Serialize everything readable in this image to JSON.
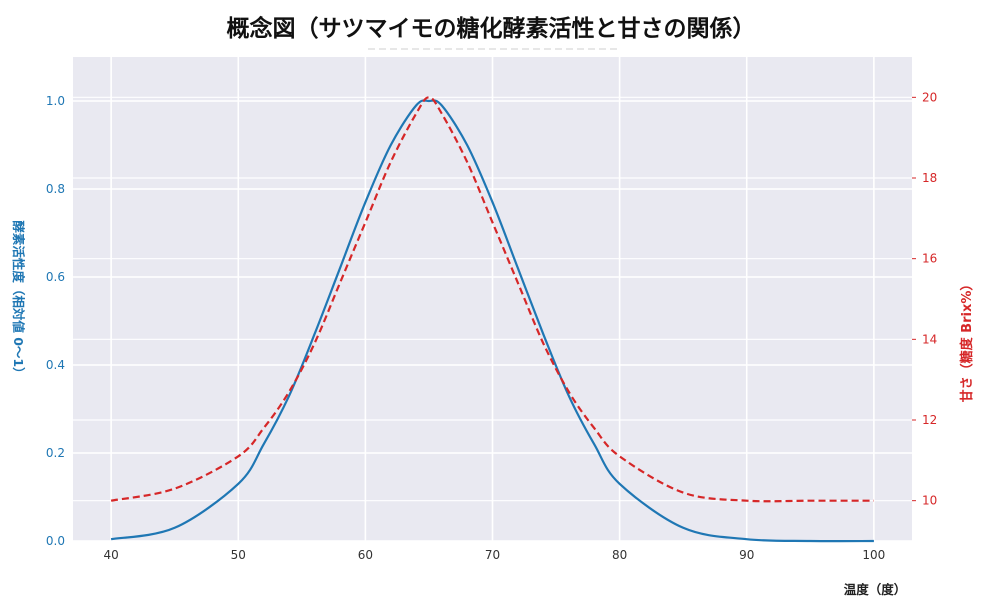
{
  "chart_data": {
    "type": "line",
    "title": "概念図（サツマイモの糖化酵素活性と甘さの関係）",
    "xlabel": "温度（度）",
    "ylabel_left": "酵素活性度（相対値 0～1）",
    "ylabel_right": "甘さ（糖度 Brix%）",
    "xlim": [
      37,
      103
    ],
    "ylim_left": [
      0,
      1.1
    ],
    "ylim_right": [
      9,
      21
    ],
    "x_ticks": [
      "40",
      "50",
      "60",
      "70",
      "80",
      "90",
      "100"
    ],
    "y_left_ticks": [
      "0.0",
      "0.2",
      "0.4",
      "0.6",
      "0.8",
      "1.0"
    ],
    "y_right_ticks": [
      "10",
      "12",
      "14",
      "16",
      "18",
      "20"
    ],
    "grid": true,
    "background": "#e9e9f1",
    "series": [
      {
        "axis": "left",
        "color": "#1f77b4",
        "style": "solid",
        "x": [
          40,
          45,
          50,
          52,
          54,
          56,
          58,
          60,
          62,
          64,
          65,
          66,
          68,
          70,
          72,
          74,
          76,
          78,
          80,
          85,
          90,
          95,
          100
        ],
        "y": [
          0.004,
          0.03,
          0.13,
          0.22,
          0.33,
          0.47,
          0.62,
          0.77,
          0.9,
          0.99,
          1.0,
          0.99,
          0.9,
          0.77,
          0.62,
          0.47,
          0.33,
          0.22,
          0.13,
          0.03,
          0.004,
          0.0,
          0.0
        ]
      },
      {
        "axis": "right",
        "color": "#d62728",
        "style": "dashed",
        "x": [
          40,
          45,
          50,
          52,
          54,
          56,
          58,
          60,
          62,
          64,
          65,
          66,
          68,
          70,
          72,
          74,
          76,
          78,
          80,
          85,
          90,
          95,
          100
        ],
        "y": [
          10.0,
          10.3,
          11.1,
          11.8,
          12.7,
          13.9,
          15.4,
          16.9,
          18.4,
          19.6,
          20.0,
          19.6,
          18.4,
          16.9,
          15.4,
          13.9,
          12.7,
          11.8,
          11.1,
          10.2,
          10.0,
          10.0,
          10.0
        ]
      }
    ]
  }
}
